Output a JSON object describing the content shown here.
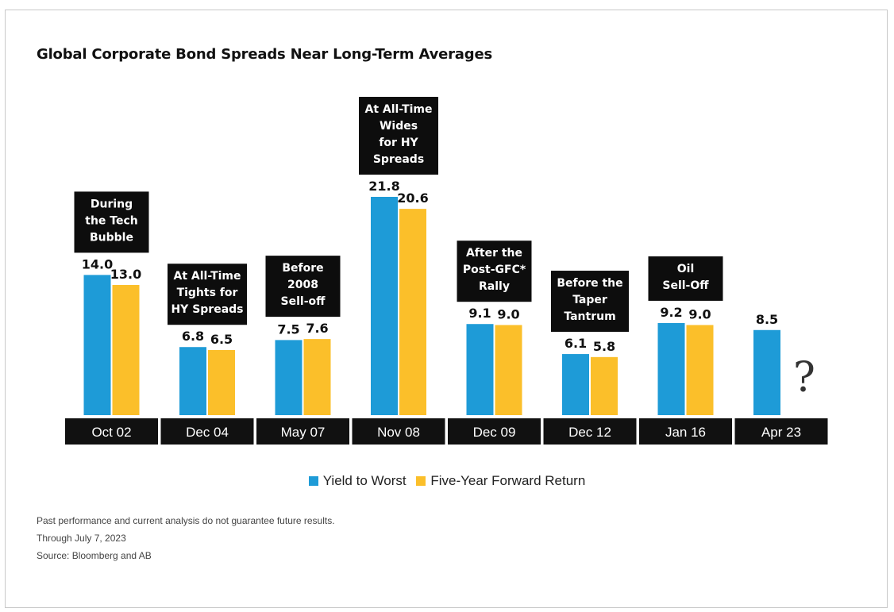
{
  "title": "Global Corporate Bond Spreads Near Long-Term Averages",
  "chart_data": {
    "type": "bar",
    "title": "Global Corporate Bond Spreads Near Long-Term Averages",
    "categories": [
      "Oct 02",
      "Dec 04",
      "May 07",
      "Nov 08",
      "Dec 09",
      "Dec 12",
      "Jan 16",
      "Apr 23"
    ],
    "annotations": [
      "During\nthe Tech\nBubble",
      "At All-Time\nTights for\nHY Spreads",
      "Before\n2008\nSell-off",
      "At All-Time\nWides\nfor HY\nSpreads",
      "After the\nPost-GFC*\nRally",
      "Before the\nTaper\nTantrum",
      "Oil\nSell-Off",
      ""
    ],
    "series": [
      {
        "name": "Yield to Worst",
        "color": "#1e9bd7",
        "values": [
          14.0,
          6.8,
          7.5,
          21.8,
          9.1,
          6.1,
          9.2,
          8.5
        ]
      },
      {
        "name": "Five-Year Forward Return",
        "color": "#fbbf2a",
        "values": [
          13.0,
          6.5,
          7.6,
          20.6,
          9.0,
          5.8,
          9.0,
          null
        ]
      }
    ],
    "unknown_marker": "?",
    "ylim": [
      0,
      24
    ],
    "xlabel": "",
    "ylabel": "",
    "grid": false,
    "legend_position": "bottom"
  },
  "legend": {
    "item1": "Yield to Worst",
    "item2": "Five-Year Forward Return"
  },
  "notes": {
    "line1": "Past performance and current analysis do not guarantee future results.",
    "line2": "Through July 7, 2023",
    "line3": "Source: Bloomberg and AB"
  }
}
